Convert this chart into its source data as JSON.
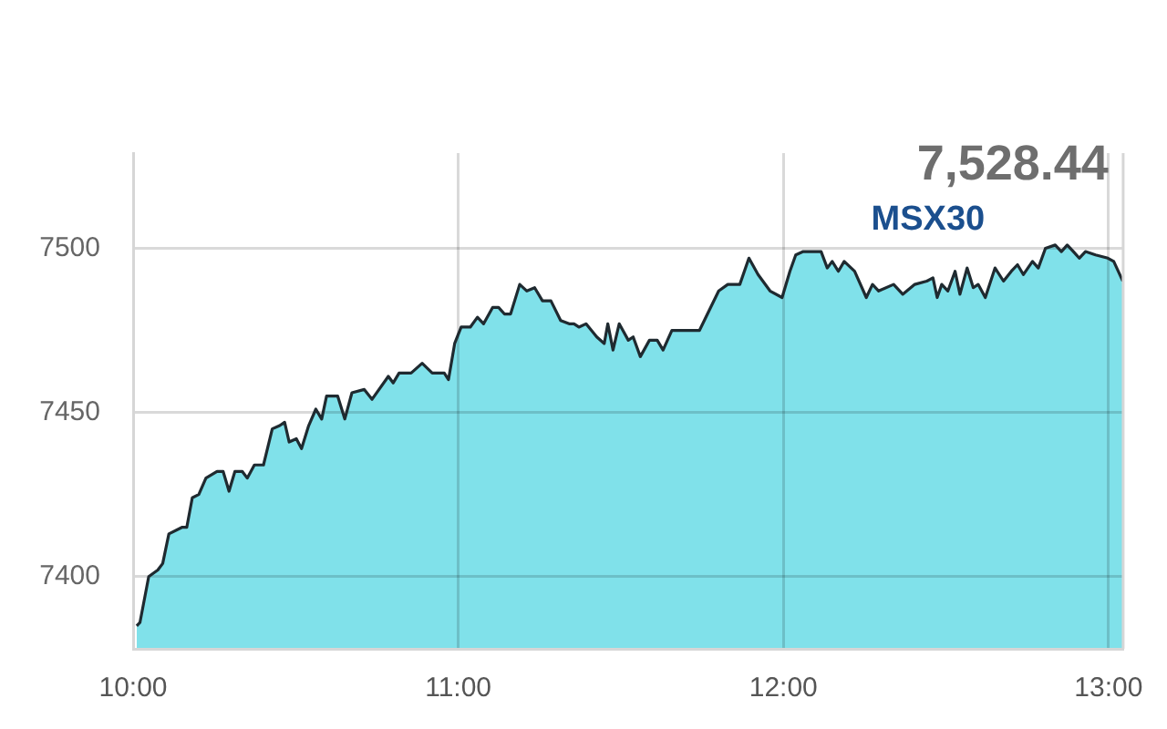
{
  "chart_data": {
    "type": "area",
    "title": "MSX30",
    "annotations": [
      "7,528.44"
    ],
    "x": [
      10.011,
      10.021,
      10.048,
      10.076,
      10.091,
      10.11,
      10.15,
      10.165,
      10.182,
      10.202,
      10.224,
      10.258,
      10.277,
      10.295,
      10.313,
      10.336,
      10.351,
      10.373,
      10.401,
      10.428,
      10.451,
      10.466,
      10.48,
      10.502,
      10.518,
      10.54,
      10.562,
      10.58,
      10.595,
      10.629,
      10.651,
      10.673,
      10.711,
      10.735,
      10.785,
      10.8,
      10.818,
      10.855,
      10.889,
      10.92,
      10.957,
      10.97,
      10.989,
      11.009,
      11.037,
      11.059,
      11.078,
      11.106,
      11.124,
      11.142,
      11.161,
      11.189,
      11.211,
      11.235,
      11.259,
      11.285,
      11.315,
      11.341,
      11.356,
      11.371,
      11.393,
      11.426,
      11.449,
      11.46,
      11.476,
      11.495,
      11.523,
      11.538,
      11.56,
      11.588,
      11.612,
      11.63,
      11.657,
      11.69,
      11.742,
      11.801,
      11.829,
      11.866,
      11.894,
      11.922,
      11.959,
      11.996,
      12.02,
      12.038,
      12.061,
      12.094,
      12.116,
      12.135,
      12.15,
      12.169,
      12.187,
      12.219,
      12.255,
      12.274,
      12.293,
      12.339,
      12.367,
      12.404,
      12.441,
      12.46,
      12.473,
      12.487,
      12.506,
      12.528,
      12.543,
      12.565,
      12.584,
      12.599,
      12.621,
      12.651,
      12.677,
      12.701,
      12.72,
      12.738,
      12.766,
      12.784,
      12.806,
      12.836,
      12.855,
      12.873,
      12.892,
      12.91,
      12.929,
      12.96,
      12.998,
      13.016,
      13.044
    ],
    "values": [
      7385,
      7386,
      7400,
      7402,
      7404,
      7413,
      7415,
      7415,
      7424,
      7425,
      7430,
      7432,
      7432,
      7426,
      7432,
      7432,
      7430,
      7434,
      7434,
      7445,
      7446,
      7447,
      7441,
      7442,
      7439,
      7446,
      7451,
      7448,
      7455,
      7455,
      7448,
      7456,
      7457,
      7454,
      7461,
      7459,
      7462,
      7462,
      7465,
      7462,
      7462,
      7460,
      7471,
      7476,
      7476,
      7479,
      7477,
      7482,
      7482,
      7480,
      7480,
      7489,
      7487,
      7488,
      7484,
      7484,
      7478,
      7477,
      7477,
      7476,
      7477,
      7473,
      7471,
      7477,
      7469,
      7477,
      7472,
      7473,
      7467,
      7472,
      7472,
      7469,
      7475,
      7475,
      7475,
      7487,
      7489,
      7489,
      7497,
      7492,
      7487,
      7485,
      7493,
      7498,
      7499,
      7499,
      7499,
      7494,
      7496,
      7493,
      7496,
      7493,
      7485,
      7489,
      7487,
      7489,
      7486,
      7489,
      7490,
      7491,
      7485,
      7489,
      7487,
      7493,
      7486,
      7494,
      7488,
      7489,
      7485,
      7494,
      7490,
      7493,
      7495,
      7492,
      7496,
      7494,
      7500,
      7501,
      7499,
      7501,
      7499,
      7497,
      7499,
      7498,
      7497,
      7496,
      7490
    ],
    "color": "#80e1ea",
    "xlim": [
      10,
      13.045
    ],
    "ylim": [
      7378,
      7529
    ],
    "xticks": [
      {
        "value": 10,
        "label": "10:00"
      },
      {
        "value": 11,
        "label": "11:00"
      },
      {
        "value": 12,
        "label": "12:00"
      },
      {
        "value": 13,
        "label": "13:00"
      }
    ],
    "yticks": [
      7400,
      7450,
      7500
    ],
    "grid": true,
    "marker": "none"
  }
}
